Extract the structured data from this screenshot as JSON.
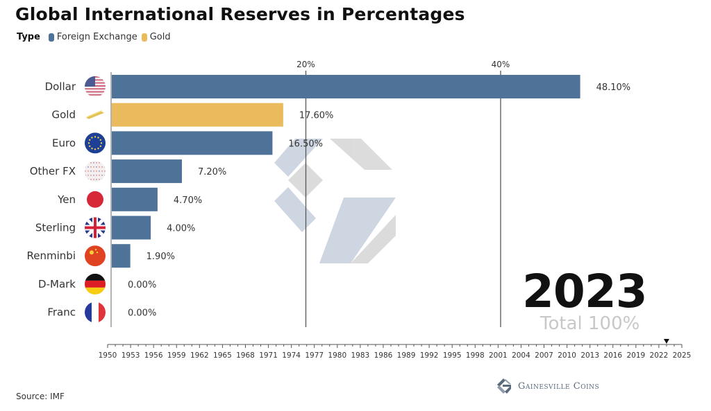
{
  "colors": {
    "foreign_exchange": "#4f7299",
    "gold": "#e9bb5c",
    "gridline": "#555555",
    "axis": "#888888",
    "watermark_blue": "#c9d3de",
    "watermark_grey": "#d8d8d8"
  },
  "legend": {
    "type_label": "Type",
    "items": [
      {
        "label": "Foreign Exchange",
        "color": "#4f7299"
      },
      {
        "label": "Gold",
        "color": "#e9bb5c"
      }
    ]
  },
  "year_display": "2023",
  "total_display": "Total 100%",
  "source": "Source: IMF",
  "brand": "Gainesville Coins",
  "chart_data": {
    "type": "bar",
    "orientation": "horizontal",
    "title": "Global International Reserves in Percentages",
    "xlabel": "",
    "ylabel": "",
    "xlim": [
      0,
      50
    ],
    "x_ticks": [
      20,
      40
    ],
    "x_tick_labels": [
      "20%",
      "40%"
    ],
    "grid": true,
    "legend_position": "top-left",
    "categories": [
      "Dollar",
      "Gold",
      "Euro",
      "Other FX",
      "Yen",
      "Sterling",
      "Renminbi",
      "D-Mark",
      "Franc"
    ],
    "values": [
      48.1,
      17.6,
      16.5,
      7.2,
      4.7,
      4.0,
      1.9,
      0.0,
      0.0
    ],
    "value_labels": [
      "48.10%",
      "17.60%",
      "16.50%",
      "7.20%",
      "4.70%",
      "4.00%",
      "1.90%",
      "0.00%",
      "0.00%"
    ],
    "series_type": [
      "Foreign Exchange",
      "Gold",
      "Foreign Exchange",
      "Foreign Exchange",
      "Foreign Exchange",
      "Foreign Exchange",
      "Foreign Exchange",
      "Foreign Exchange",
      "Foreign Exchange"
    ],
    "icons": [
      "us-flag-icon",
      "gold-bar-icon",
      "eu-flag-icon",
      "world-currencies-icon",
      "japan-flag-icon",
      "uk-flag-icon",
      "china-flag-icon",
      "germany-flag-icon",
      "france-flag-icon"
    ],
    "timeline": {
      "start": 1950,
      "end": 2025,
      "tick_labels": [
        "1950",
        "1953",
        "1956",
        "1959",
        "1962",
        "1965",
        "1968",
        "1971",
        "1974",
        "1977",
        "1980",
        "1983",
        "1986",
        "1989",
        "1992",
        "1995",
        "1998",
        "2001",
        "2004",
        "2007",
        "2010",
        "2013",
        "2016",
        "2019",
        "2022",
        "2025"
      ],
      "current_year": 2023
    }
  }
}
